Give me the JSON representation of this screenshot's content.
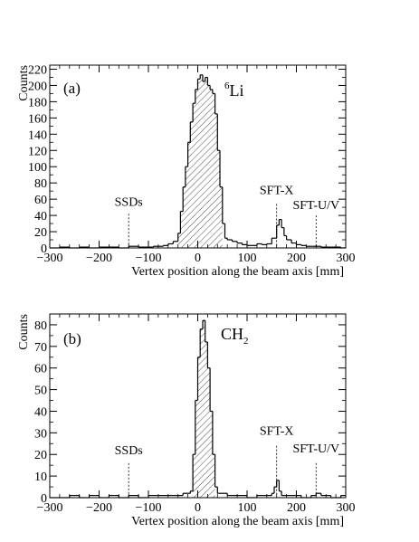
{
  "chart_data": [
    {
      "type": "histogram",
      "panel_label": "(a)",
      "target_label": {
        "superscript": "6",
        "base": "Li"
      },
      "xlabel": "Vertex position along the beam axis [mm]",
      "ylabel": "Counts",
      "xlim": [
        -300,
        300
      ],
      "ylim": [
        0,
        225
      ],
      "xticks": [
        -300,
        -200,
        -100,
        0,
        100,
        200,
        300
      ],
      "xtick_labels": [
        "−300",
        "−200",
        "−100",
        "0",
        "100",
        "200",
        "300"
      ],
      "yticks": [
        0,
        20,
        40,
        60,
        80,
        100,
        120,
        140,
        160,
        180,
        200,
        220
      ],
      "ytick_labels": [
        "0",
        "20",
        "40",
        "60",
        "80",
        "100",
        "120",
        "140",
        "160",
        "180",
        "200",
        "220"
      ],
      "hatched_range": [
        -40,
        50
      ],
      "bins": [
        [
          -300,
          0
        ],
        [
          -280,
          1
        ],
        [
          -260,
          0
        ],
        [
          -240,
          1
        ],
        [
          -220,
          0
        ],
        [
          -200,
          1
        ],
        [
          -180,
          1
        ],
        [
          -160,
          0
        ],
        [
          -140,
          2
        ],
        [
          -120,
          1
        ],
        [
          -100,
          1
        ],
        [
          -90,
          2
        ],
        [
          -80,
          2
        ],
        [
          -70,
          3
        ],
        [
          -60,
          5
        ],
        [
          -50,
          8
        ],
        [
          -40,
          18
        ],
        [
          -35,
          45
        ],
        [
          -30,
          75
        ],
        [
          -25,
          100
        ],
        [
          -20,
          130
        ],
        [
          -15,
          155
        ],
        [
          -10,
          178
        ],
        [
          -5,
          195
        ],
        [
          0,
          208
        ],
        [
          5,
          213
        ],
        [
          10,
          205
        ],
        [
          15,
          210
        ],
        [
          20,
          200
        ],
        [
          25,
          195
        ],
        [
          30,
          190
        ],
        [
          35,
          165
        ],
        [
          40,
          120
        ],
        [
          45,
          75
        ],
        [
          50,
          30
        ],
        [
          55,
          12
        ],
        [
          60,
          10
        ],
        [
          70,
          8
        ],
        [
          80,
          6
        ],
        [
          90,
          4
        ],
        [
          100,
          3
        ],
        [
          110,
          3
        ],
        [
          120,
          5
        ],
        [
          130,
          4
        ],
        [
          140,
          5
        ],
        [
          150,
          12
        ],
        [
          160,
          28
        ],
        [
          165,
          35
        ],
        [
          170,
          25
        ],
        [
          175,
          15
        ],
        [
          180,
          10
        ],
        [
          190,
          6
        ],
        [
          200,
          4
        ],
        [
          210,
          3
        ],
        [
          220,
          2
        ],
        [
          230,
          2
        ],
        [
          240,
          2
        ],
        [
          250,
          1
        ],
        [
          260,
          1
        ],
        [
          270,
          1
        ],
        [
          280,
          1
        ],
        [
          290,
          0
        ]
      ],
      "annotations": [
        {
          "text": "SSDs",
          "x": -140,
          "label_y": 52,
          "line_top": 42
        },
        {
          "text": "SFT-X",
          "x": 160,
          "label_y": 66,
          "line_top": 54
        },
        {
          "text": "SFT-U/V",
          "x": 240,
          "label_y": 48,
          "line_top": 40
        }
      ]
    },
    {
      "type": "histogram",
      "panel_label": "(b)",
      "target_label": {
        "base": "CH",
        "subscript": "2"
      },
      "xlabel": "Vertex position along the beam axis [mm]",
      "ylabel": "Counts",
      "xlim": [
        -300,
        300
      ],
      "ylim": [
        0,
        85
      ],
      "xticks": [
        -300,
        -200,
        -100,
        0,
        100,
        200,
        300
      ],
      "xtick_labels": [
        "−300",
        "−200",
        "−100",
        "0",
        "100",
        "200",
        "300"
      ],
      "yticks": [
        0,
        10,
        20,
        30,
        40,
        50,
        60,
        70,
        80
      ],
      "ytick_labels": [
        "0",
        "10",
        "20",
        "30",
        "40",
        "50",
        "60",
        "70",
        "80"
      ],
      "hatched_range": [
        -10,
        35
      ],
      "bins": [
        [
          -300,
          0
        ],
        [
          -280,
          0
        ],
        [
          -260,
          1
        ],
        [
          -240,
          0
        ],
        [
          -220,
          1
        ],
        [
          -200,
          0
        ],
        [
          -180,
          1
        ],
        [
          -160,
          0
        ],
        [
          -140,
          1
        ],
        [
          -120,
          0
        ],
        [
          -100,
          1
        ],
        [
          -80,
          1
        ],
        [
          -60,
          1
        ],
        [
          -40,
          1
        ],
        [
          -30,
          2
        ],
        [
          -20,
          2
        ],
        [
          -15,
          3
        ],
        [
          -10,
          20
        ],
        [
          -5,
          45
        ],
        [
          0,
          65
        ],
        [
          5,
          78
        ],
        [
          10,
          82
        ],
        [
          15,
          72
        ],
        [
          20,
          60
        ],
        [
          25,
          40
        ],
        [
          30,
          20
        ],
        [
          35,
          5
        ],
        [
          40,
          2
        ],
        [
          60,
          1
        ],
        [
          80,
          1
        ],
        [
          100,
          0
        ],
        [
          120,
          1
        ],
        [
          140,
          1
        ],
        [
          150,
          2
        ],
        [
          155,
          5
        ],
        [
          160,
          8
        ],
        [
          165,
          3
        ],
        [
          170,
          1
        ],
        [
          190,
          1
        ],
        [
          210,
          0
        ],
        [
          230,
          1
        ],
        [
          240,
          2
        ],
        [
          250,
          1
        ],
        [
          270,
          0
        ],
        [
          290,
          1
        ]
      ],
      "annotations": [
        {
          "text": "SSDs",
          "x": -140,
          "label_y": 20,
          "line_top": 16
        },
        {
          "text": "SFT-X",
          "x": 160,
          "label_y": 29,
          "line_top": 24
        },
        {
          "text": "SFT-U/V",
          "x": 240,
          "label_y": 21,
          "line_top": 16
        }
      ]
    }
  ]
}
